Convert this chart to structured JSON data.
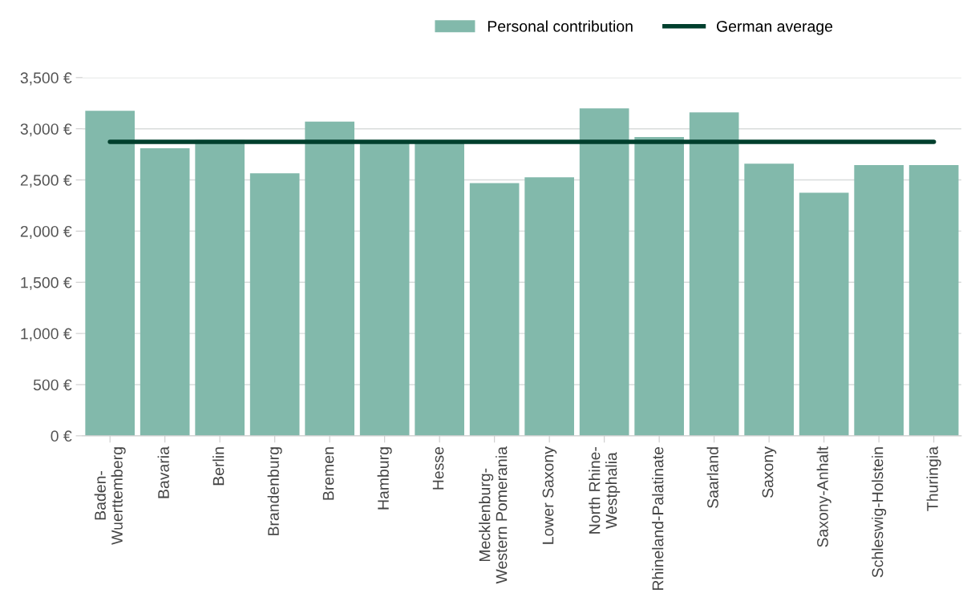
{
  "chart_data": {
    "type": "bar",
    "categories": [
      "Baden-\nWuerttemberg",
      "Bavaria",
      "Berlin",
      "Brandenburg",
      "Bremen",
      "Hamburg",
      "Hesse",
      "Mecklenburg-\nWestern Pomerania",
      "Lower Saxony",
      "North Rhine-\nWestphalia",
      "Rhineland-Palatinate",
      "Saarland",
      "Saxony",
      "Saxony-Anhalt",
      "Schleswig-Holstein",
      "Thuringia"
    ],
    "series": [
      {
        "name": "Personal contribution",
        "color": "#82b9ab",
        "values": [
          3175,
          2810,
          2890,
          2565,
          3070,
          2860,
          2860,
          2470,
          2525,
          3200,
          2920,
          3160,
          2660,
          2375,
          2645,
          2645
        ]
      },
      {
        "name": "German average",
        "type": "line",
        "color": "#003f2d",
        "values": [
          2873,
          2873,
          2873,
          2873,
          2873,
          2873,
          2873,
          2873,
          2873,
          2873,
          2873,
          2873,
          2873,
          2873,
          2873,
          2873
        ]
      }
    ],
    "ylim": [
      0,
      3500
    ],
    "yticks": [
      {
        "value": 0,
        "label": "0 €"
      },
      {
        "value": 500,
        "label": "500 €"
      },
      {
        "value": 1000,
        "label": "1,000 €"
      },
      {
        "value": 1500,
        "label": "1,500 €"
      },
      {
        "value": 2000,
        "label": "2,000 €"
      },
      {
        "value": 2500,
        "label": "2,500 €"
      },
      {
        "value": 3000,
        "label": "3,000 €"
      },
      {
        "value": 3500,
        "label": "3,500 €"
      }
    ],
    "grid": "y",
    "legend": "top right"
  }
}
